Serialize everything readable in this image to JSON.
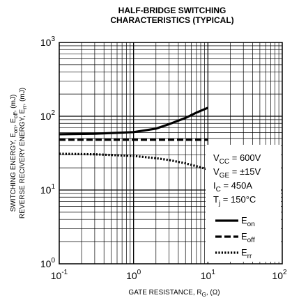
{
  "chart_data": {
    "type": "line",
    "title": [
      "HALF-BRIDGE SWITCHING",
      "CHARACTERISTICS (TYPICAL)"
    ],
    "x_axis": {
      "scale": "log",
      "range": [
        0.1,
        100
      ],
      "tick_labels": [
        {
          "base": "10",
          "exp": "-1",
          "value": 0.1
        },
        {
          "base": "10",
          "exp": "0",
          "value": 1
        },
        {
          "base": "10",
          "exp": "1",
          "value": 10
        },
        {
          "base": "10",
          "exp": "2",
          "value": 100
        }
      ],
      "label": {
        "main": "GATE RESISTANCE, R",
        "sub": "G",
        "tail": ", (Ω)"
      }
    },
    "y_axis": {
      "scale": "log",
      "range": [
        1,
        1000
      ],
      "tick_labels": [
        {
          "base": "10",
          "exp": "0",
          "value": 1
        },
        {
          "base": "10",
          "exp": "1",
          "value": 10
        },
        {
          "base": "10",
          "exp": "2",
          "value": 100
        },
        {
          "base": "10",
          "exp": "3",
          "value": 1000
        }
      ],
      "label_line1": [
        {
          "t": "SWITCHING ENERGY, E",
          "s": ""
        },
        {
          "t": "on",
          "s": "sub"
        },
        {
          "t": ", E",
          "s": ""
        },
        {
          "t": "off",
          "s": "sub"
        },
        {
          "t": ", (mJ)",
          "s": ""
        }
      ],
      "label_line2": [
        {
          "t": "REVERSE RECIVERY ENERGY, E",
          "s": ""
        },
        {
          "t": "rr",
          "s": "sub"
        },
        {
          "t": ", (mJ)",
          "s": ""
        }
      ]
    },
    "grid": true,
    "legend_placement": "inside-bottom-right",
    "series": [
      {
        "name": "E",
        "sub": "on",
        "style": "solid",
        "x": [
          0.1,
          0.3,
          1,
          2,
          3,
          5,
          7,
          10
        ],
        "y": [
          57,
          58,
          61,
          68,
          78,
          95,
          112,
          130
        ]
      },
      {
        "name": "E",
        "sub": "off",
        "style": "dashed",
        "x": [
          0.1,
          1,
          10
        ],
        "y": [
          48,
          48,
          48
        ]
      },
      {
        "name": "E",
        "sub": "rr",
        "style": "dotted",
        "x": [
          0.1,
          0.3,
          1,
          2,
          3,
          5,
          7,
          10
        ],
        "y": [
          31,
          30.5,
          29,
          27,
          25.5,
          23,
          21,
          19
        ]
      }
    ],
    "conditions": [
      {
        "t": "V",
        "sub": "CC",
        "rest": " = 600V"
      },
      {
        "t": "V",
        "sub": "GE",
        "rest": " = ±15V"
      },
      {
        "t": "I",
        "sub": "C",
        "rest": " = 450A"
      },
      {
        "t": "T",
        "sub": "j",
        "rest": " = 150°C"
      }
    ]
  }
}
